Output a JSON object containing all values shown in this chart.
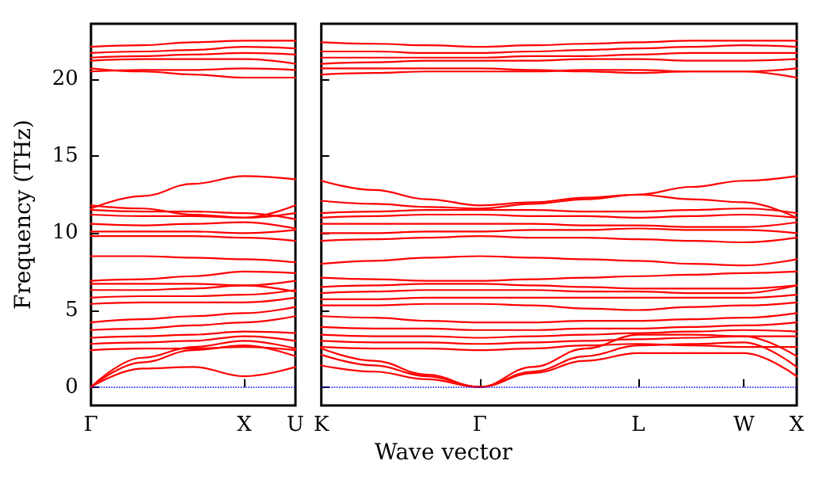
{
  "chart_data": [
    {
      "type": "line",
      "ylabel": "Frequency (THz)",
      "categories": [
        "Γ",
        null,
        null,
        "X",
        "U"
      ],
      "ylim": [
        -1.2,
        23.6
      ],
      "yticks": [
        0,
        5,
        10,
        15,
        20
      ],
      "ref_lines": [
        {
          "axis": "y",
          "value": 0,
          "label": null,
          "color": "#0000ff",
          "line_style": "dotted"
        }
      ],
      "marker": "none",
      "line_style": "solid",
      "series": [
        {
          "color": "#ff0000",
          "values": [
            0,
            1.2,
            1.3,
            0.7,
            1.3
          ]
        },
        {
          "color": "#ff0000",
          "values": [
            0,
            1.6,
            2.4,
            2.7,
            2.0
          ]
        },
        {
          "color": "#ff0000",
          "values": [
            0,
            1.9,
            2.6,
            3.0,
            2.5
          ]
        },
        {
          "color": "#ff0000",
          "values": [
            2.4,
            2.5,
            2.5,
            2.6,
            2.4
          ]
        },
        {
          "color": "#ff0000",
          "values": [
            2.8,
            2.9,
            3.0,
            3.3,
            3.0
          ]
        },
        {
          "color": "#ff0000",
          "values": [
            3.2,
            3.3,
            3.4,
            3.6,
            3.5
          ]
        },
        {
          "color": "#ff0000",
          "values": [
            3.7,
            3.8,
            4.0,
            4.2,
            4.6
          ]
        },
        {
          "color": "#ff0000",
          "values": [
            4.2,
            4.4,
            4.6,
            4.8,
            5.2
          ]
        },
        {
          "color": "#ff0000",
          "values": [
            5.4,
            5.5,
            5.5,
            5.5,
            5.8
          ]
        },
        {
          "color": "#ff0000",
          "values": [
            5.8,
            5.9,
            5.9,
            6.0,
            6.3
          ]
        },
        {
          "color": "#ff0000",
          "values": [
            6.3,
            6.3,
            6.4,
            6.6,
            6.2
          ]
        },
        {
          "color": "#ff0000",
          "values": [
            6.7,
            6.7,
            6.7,
            6.6,
            6.9
          ]
        },
        {
          "color": "#ff0000",
          "values": [
            6.9,
            7.0,
            7.2,
            7.5,
            7.4
          ]
        },
        {
          "color": "#ff0000",
          "values": [
            8.5,
            8.5,
            8.4,
            8.3,
            8.1
          ]
        },
        {
          "color": "#ff0000",
          "values": [
            9.8,
            9.8,
            9.8,
            9.7,
            9.5
          ]
        },
        {
          "color": "#ff0000",
          "values": [
            10.1,
            10.1,
            10.1,
            10.0,
            10.2
          ]
        },
        {
          "color": "#ff0000",
          "values": [
            10.6,
            10.5,
            10.6,
            10.7,
            10.3
          ]
        },
        {
          "color": "#ff0000",
          "values": [
            11.2,
            11.1,
            11.1,
            11.0,
            11.3
          ]
        },
        {
          "color": "#ff0000",
          "values": [
            11.5,
            11.4,
            11.4,
            11.3,
            10.9
          ]
        },
        {
          "color": "#ff0000",
          "values": [
            11.6,
            12.4,
            13.2,
            13.7,
            13.5
          ]
        },
        {
          "color": "#ff0000",
          "values": [
            11.8,
            11.6,
            11.2,
            11.0,
            11.8
          ]
        },
        {
          "color": "#ff0000",
          "values": [
            20.5,
            20.6,
            20.6,
            20.7,
            20.6
          ]
        },
        {
          "color": "#ff0000",
          "values": [
            20.7,
            20.5,
            20.3,
            20.1,
            20.1
          ]
        },
        {
          "color": "#ff0000",
          "values": [
            21.2,
            21.3,
            21.3,
            21.3,
            21.0
          ]
        },
        {
          "color": "#ff0000",
          "values": [
            21.4,
            21.5,
            21.6,
            21.7,
            21.6
          ]
        },
        {
          "color": "#ff0000",
          "values": [
            21.7,
            21.8,
            21.9,
            22.1,
            22.0
          ]
        },
        {
          "color": "#ff0000",
          "values": [
            22.1,
            22.2,
            22.4,
            22.5,
            22.5
          ]
        }
      ]
    },
    {
      "type": "line",
      "xlabel": "Wave vector",
      "categories": [
        "K",
        null,
        null,
        "Γ",
        null,
        null,
        "L",
        null,
        "W",
        "X"
      ],
      "ylim": [
        -1.2,
        23.6
      ],
      "yticks": [
        {
          "value": 0,
          "label": null
        },
        {
          "value": 5,
          "label": null
        },
        {
          "value": 10,
          "label": null
        },
        {
          "value": 15,
          "label": null
        },
        {
          "value": 20,
          "label": null
        }
      ],
      "tick_labels": "x",
      "ref_lines": [
        {
          "axis": "y",
          "value": 0,
          "label": null,
          "color": "#0000ff",
          "line_style": "dotted"
        }
      ],
      "marker": "none",
      "line_style": "solid",
      "series": [
        {
          "color": "#ff0000",
          "values": [
            1.4,
            1.0,
            0.5,
            0,
            0.9,
            1.7,
            2.2,
            2.2,
            2.2,
            0.7
          ]
        },
        {
          "color": "#ff0000",
          "values": [
            2.1,
            1.4,
            0.7,
            0,
            1.0,
            2.0,
            2.7,
            2.8,
            2.9,
            1.3
          ]
        },
        {
          "color": "#ff0000",
          "values": [
            2.5,
            1.7,
            0.8,
            0,
            1.3,
            2.5,
            3.4,
            3.4,
            3.3,
            2.0
          ]
        },
        {
          "color": "#ff0000",
          "values": [
            2.6,
            2.5,
            2.5,
            2.4,
            2.5,
            2.7,
            2.8,
            2.7,
            2.6,
            2.6
          ]
        },
        {
          "color": "#ff0000",
          "values": [
            3.0,
            2.9,
            2.9,
            2.8,
            2.9,
            3.0,
            3.1,
            3.2,
            3.3,
            3.3
          ]
        },
        {
          "color": "#ff0000",
          "values": [
            3.4,
            3.3,
            3.3,
            3.2,
            3.3,
            3.4,
            3.5,
            3.6,
            3.7,
            3.6
          ]
        },
        {
          "color": "#ff0000",
          "values": [
            3.9,
            3.8,
            3.8,
            3.7,
            3.7,
            3.8,
            3.8,
            3.9,
            4.0,
            4.2
          ]
        },
        {
          "color": "#ff0000",
          "values": [
            4.6,
            4.5,
            4.3,
            4.2,
            4.2,
            4.3,
            4.3,
            4.4,
            4.5,
            4.8
          ]
        },
        {
          "color": "#ff0000",
          "values": [
            5.3,
            5.3,
            5.4,
            5.4,
            5.3,
            5.1,
            5.0,
            5.2,
            5.3,
            5.5
          ]
        },
        {
          "color": "#ff0000",
          "values": [
            5.7,
            5.7,
            5.8,
            5.8,
            5.8,
            5.8,
            5.8,
            5.8,
            5.8,
            6.0
          ]
        },
        {
          "color": "#ff0000",
          "values": [
            6.1,
            6.2,
            6.3,
            6.3,
            6.3,
            6.2,
            6.2,
            6.1,
            6.1,
            6.6
          ]
        },
        {
          "color": "#ff0000",
          "values": [
            6.5,
            6.6,
            6.7,
            6.7,
            6.6,
            6.5,
            6.4,
            6.4,
            6.4,
            6.6
          ]
        },
        {
          "color": "#ff0000",
          "values": [
            7.1,
            7.0,
            6.9,
            6.9,
            7.0,
            7.1,
            7.2,
            7.3,
            7.4,
            7.5
          ]
        },
        {
          "color": "#ff0000",
          "values": [
            8.0,
            8.2,
            8.4,
            8.5,
            8.4,
            8.3,
            8.2,
            8.0,
            7.9,
            8.3
          ]
        },
        {
          "color": "#ff0000",
          "values": [
            9.5,
            9.6,
            9.7,
            9.8,
            9.7,
            9.7,
            9.6,
            9.5,
            9.4,
            9.7
          ]
        },
        {
          "color": "#ff0000",
          "values": [
            10.0,
            10.0,
            10.1,
            10.1,
            10.2,
            10.2,
            10.3,
            10.2,
            10.2,
            10.0
          ]
        },
        {
          "color": "#ff0000",
          "values": [
            10.6,
            10.6,
            10.6,
            10.6,
            10.6,
            10.5,
            10.5,
            10.4,
            10.4,
            10.7
          ]
        },
        {
          "color": "#ff0000",
          "values": [
            11.0,
            11.1,
            11.2,
            11.2,
            11.1,
            11.1,
            11.0,
            11.1,
            11.2,
            11.0
          ]
        },
        {
          "color": "#ff0000",
          "values": [
            11.3,
            11.4,
            11.5,
            11.5,
            11.5,
            11.4,
            11.4,
            11.5,
            11.6,
            11.3
          ]
        },
        {
          "color": "#ff0000",
          "values": [
            12.1,
            11.9,
            11.7,
            11.6,
            11.9,
            12.2,
            12.5,
            13.0,
            13.4,
            13.7
          ]
        },
        {
          "color": "#ff0000",
          "values": [
            13.4,
            12.8,
            12.2,
            11.8,
            12.0,
            12.3,
            12.5,
            12.2,
            12.0,
            11.0
          ]
        },
        {
          "color": "#ff0000",
          "values": [
            20.3,
            20.4,
            20.5,
            20.5,
            20.5,
            20.6,
            20.6,
            20.5,
            20.5,
            20.1
          ]
        },
        {
          "color": "#ff0000",
          "values": [
            20.7,
            20.7,
            20.7,
            20.7,
            20.6,
            20.5,
            20.4,
            20.5,
            20.5,
            20.7
          ]
        },
        {
          "color": "#ff0000",
          "values": [
            21.0,
            21.1,
            21.2,
            21.2,
            21.2,
            21.3,
            21.3,
            21.2,
            21.2,
            21.3
          ]
        },
        {
          "color": "#ff0000",
          "values": [
            21.4,
            21.4,
            21.4,
            21.4,
            21.5,
            21.5,
            21.6,
            21.7,
            21.7,
            21.7
          ]
        },
        {
          "color": "#ff0000",
          "values": [
            21.8,
            21.8,
            21.7,
            21.7,
            21.8,
            21.9,
            22.0,
            22.1,
            22.2,
            22.1
          ]
        },
        {
          "color": "#ff0000",
          "values": [
            22.4,
            22.3,
            22.2,
            22.1,
            22.2,
            22.3,
            22.4,
            22.5,
            22.5,
            22.5
          ]
        }
      ]
    }
  ]
}
